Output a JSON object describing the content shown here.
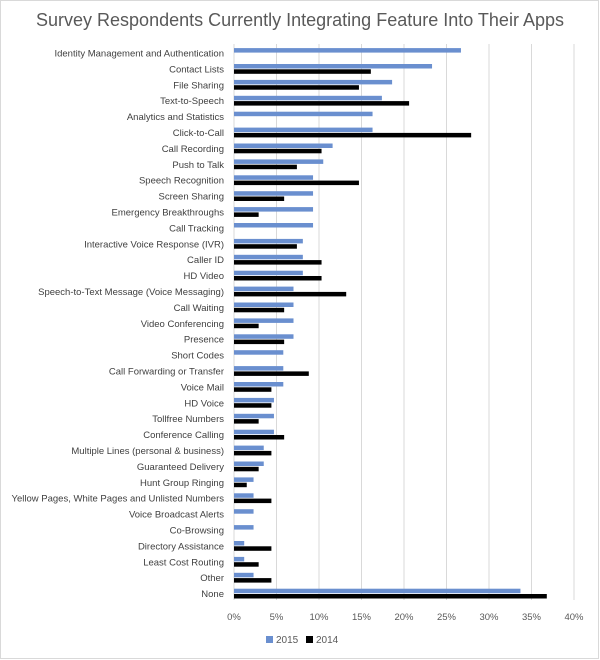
{
  "chart_data": {
    "type": "bar",
    "orientation": "horizontal",
    "title": "Survey Respondents Currently Integrating Feature Into Their Apps",
    "xlabel": "",
    "ylabel": "",
    "xlim": [
      0,
      40
    ],
    "x_tick_labels": [
      "0%",
      "5%",
      "10%",
      "15%",
      "20%",
      "25%",
      "30%",
      "35%",
      "40%"
    ],
    "grid": true,
    "legend_position": "bottom",
    "categories": [
      "Identity Management and Authentication",
      "Contact Lists",
      "File Sharing",
      "Text-to-Speech",
      "Analytics and Statistics",
      "Click-to-Call",
      "Call Recording",
      "Push to Talk",
      "Speech Recognition",
      "Screen Sharing",
      "Emergency Breakthroughs",
      "Call Tracking",
      "Interactive Voice Response (IVR)",
      "Caller ID",
      "HD Video",
      "Speech-to-Text Message (Voice Messaging)",
      "Call Waiting",
      "Video Conferencing",
      "Presence",
      "Short Codes",
      "Call Forwarding or Transfer",
      "Voice Mail",
      "HD Voice",
      "Tollfree Numbers",
      "Conference Calling",
      "Multiple Lines (personal & business)",
      "Guaranteed Delivery",
      "Hunt Group Ringing",
      "Yellow Pages, White Pages and Unlisted Numbers",
      "Voice Broadcast Alerts",
      "Co-Browsing",
      "Directory Assistance",
      "Least Cost Routing",
      "Other",
      "None"
    ],
    "series": [
      {
        "name": "2015",
        "color": "#6a8fcf",
        "values": [
          26.7,
          23.3,
          18.6,
          17.4,
          16.3,
          16.3,
          11.6,
          10.5,
          9.3,
          9.3,
          9.3,
          9.3,
          8.1,
          8.1,
          8.1,
          7.0,
          7.0,
          7.0,
          7.0,
          5.8,
          5.8,
          5.8,
          4.7,
          4.7,
          4.7,
          3.5,
          3.5,
          2.3,
          2.3,
          2.3,
          2.3,
          1.2,
          1.2,
          2.3,
          33.7
        ]
      },
      {
        "name": "2014",
        "color": "#000000",
        "values": [
          null,
          16.1,
          14.7,
          20.6,
          null,
          27.9,
          10.3,
          7.4,
          14.7,
          5.9,
          2.9,
          null,
          7.4,
          10.3,
          10.3,
          13.2,
          5.9,
          2.9,
          5.9,
          null,
          8.8,
          4.4,
          4.4,
          2.9,
          5.9,
          4.4,
          2.9,
          1.5,
          4.4,
          null,
          null,
          4.4,
          2.9,
          4.4,
          36.8
        ]
      }
    ]
  }
}
